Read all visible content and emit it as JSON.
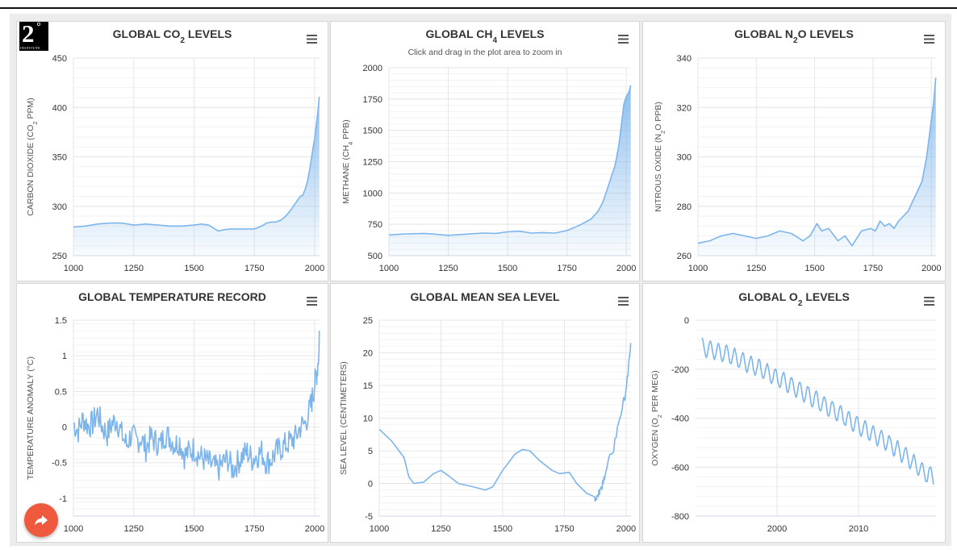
{
  "logo": {
    "number": "2",
    "degree": "°",
    "subtitle": "INSTITUTE"
  },
  "share": {
    "icon": "share-arrow-icon",
    "color": "#ef5a3e"
  },
  "menu_icon": "hamburger-menu-icon",
  "colors": {
    "line": "#7cb5ec",
    "grid": "#e6e6e6",
    "text": "#333333",
    "axis": "#ccd6eb"
  },
  "chart_data": [
    {
      "type": "area",
      "title_parts": [
        {
          "t": "GLOBAL CO"
        },
        {
          "t": "2",
          "sub": true
        },
        {
          "t": " LEVELS"
        }
      ],
      "subtitle": "",
      "ylabel_parts": [
        {
          "t": "CARBON DIOXIDE (CO"
        },
        {
          "t": "2",
          "sub": true
        },
        {
          "t": " PPM)"
        }
      ],
      "xlim": [
        1000,
        2020
      ],
      "ylim": [
        250,
        450
      ],
      "xticks": [
        1000,
        1250,
        1500,
        1750,
        2000
      ],
      "yticks": [
        250,
        300,
        350,
        400,
        450
      ],
      "minor_y": 10,
      "x": [
        1000,
        1050,
        1100,
        1150,
        1200,
        1250,
        1300,
        1350,
        1400,
        1450,
        1500,
        1530,
        1560,
        1600,
        1620,
        1650,
        1700,
        1750,
        1780,
        1800,
        1820,
        1840,
        1860,
        1880,
        1900,
        1920,
        1940,
        1950,
        1960,
        1970,
        1980,
        1990,
        2000,
        2005,
        2010,
        2015,
        2019
      ],
      "y": [
        279,
        280,
        282,
        283,
        283,
        281,
        282,
        281,
        280,
        280,
        281,
        282,
        281,
        275,
        276,
        277,
        277,
        277,
        280,
        283,
        284,
        284,
        286,
        290,
        296,
        303,
        310,
        311,
        317,
        325,
        338,
        354,
        369,
        379,
        389,
        400,
        411
      ]
    },
    {
      "type": "area",
      "title_parts": [
        {
          "t": "GLOBAL CH"
        },
        {
          "t": "4",
          "sub": true
        },
        {
          "t": " LEVELS"
        }
      ],
      "subtitle": "Click and drag in the plot area to zoom in",
      "ylabel_parts": [
        {
          "t": "METHANE (CH"
        },
        {
          "t": "4",
          "sub": true
        },
        {
          "t": " PPB)"
        }
      ],
      "xlim": [
        1000,
        2020
      ],
      "ylim": [
        500,
        2000
      ],
      "xticks": [
        1000,
        1250,
        1500,
        1750,
        2000
      ],
      "yticks": [
        500,
        750,
        1000,
        1250,
        1500,
        1750,
        2000
      ],
      "minor_y": 50,
      "x": [
        1000,
        1050,
        1100,
        1150,
        1200,
        1250,
        1300,
        1350,
        1400,
        1450,
        1500,
        1550,
        1600,
        1650,
        1700,
        1750,
        1800,
        1850,
        1880,
        1900,
        1920,
        1940,
        1950,
        1960,
        1970,
        1980,
        1990,
        2000,
        2010,
        2019
      ],
      "y": [
        665,
        672,
        675,
        678,
        670,
        662,
        668,
        675,
        680,
        678,
        690,
        695,
        680,
        684,
        680,
        700,
        740,
        790,
        850,
        920,
        1030,
        1150,
        1200,
        1290,
        1400,
        1550,
        1710,
        1770,
        1800,
        1860
      ]
    },
    {
      "type": "area",
      "title_parts": [
        {
          "t": "GLOBAL N"
        },
        {
          "t": "2",
          "sub": true
        },
        {
          "t": "O LEVELS"
        }
      ],
      "subtitle": "",
      "ylabel_parts": [
        {
          "t": "NITROUS OXIDE (N"
        },
        {
          "t": "2",
          "sub": true
        },
        {
          "t": "O PPB)"
        }
      ],
      "xlim": [
        1000,
        2020
      ],
      "ylim": [
        260,
        340
      ],
      "xticks": [
        1000,
        1250,
        1500,
        1750,
        2000
      ],
      "yticks": [
        260,
        280,
        300,
        320,
        340
      ],
      "minor_y": 4,
      "x": [
        1000,
        1050,
        1100,
        1150,
        1200,
        1250,
        1300,
        1350,
        1400,
        1450,
        1480,
        1510,
        1530,
        1560,
        1600,
        1630,
        1660,
        1700,
        1740,
        1760,
        1780,
        1800,
        1820,
        1840,
        1860,
        1880,
        1900,
        1920,
        1940,
        1960,
        1980,
        2000,
        2010,
        2019
      ],
      "y": [
        265,
        266,
        268,
        269,
        268,
        267,
        268,
        270,
        269,
        266,
        268,
        273,
        270,
        271,
        266,
        268,
        264,
        270,
        271,
        270,
        274,
        272,
        273,
        271,
        274,
        276,
        278,
        282,
        286,
        290,
        300,
        315,
        322,
        332
      ]
    },
    {
      "type": "line",
      "title_parts": [
        {
          "t": "GLOBAL TEMPERATURE RECORD"
        }
      ],
      "subtitle": "",
      "ylabel_parts": [
        {
          "t": "TEMPERATURE ANOMALY (°C)"
        }
      ],
      "xlim": [
        1000,
        2020
      ],
      "ylim": [
        -1.25,
        1.5
      ],
      "xticks": [
        1000,
        1250,
        1500,
        1750,
        2000
      ],
      "yticks": [
        -1,
        -0.5,
        0,
        0.5,
        1,
        1.5
      ],
      "ytick_labels": [
        "-1",
        "-0.5",
        "0",
        "0.5",
        "1",
        "1.5"
      ],
      "minor_y": 0.1,
      "x": [
        1000,
        1020,
        1040,
        1060,
        1080,
        1100,
        1120,
        1140,
        1160,
        1180,
        1200,
        1220,
        1240,
        1260,
        1280,
        1300,
        1320,
        1340,
        1360,
        1380,
        1400,
        1420,
        1440,
        1460,
        1480,
        1500,
        1520,
        1540,
        1560,
        1580,
        1600,
        1620,
        1640,
        1660,
        1680,
        1700,
        1720,
        1740,
        1760,
        1780,
        1800,
        1820,
        1840,
        1860,
        1880,
        1900,
        1920,
        1940,
        1960,
        1980,
        1990,
        2000,
        2010,
        2019
      ],
      "y": [
        0.05,
        -0.05,
        0.12,
        0.02,
        0.05,
        0.2,
        0.0,
        -0.1,
        0.05,
        0.1,
        -0.1,
        -0.25,
        -0.1,
        -0.2,
        -0.15,
        -0.3,
        -0.15,
        -0.2,
        -0.25,
        -0.1,
        -0.15,
        -0.25,
        -0.2,
        -0.4,
        -0.35,
        -0.3,
        -0.4,
        -0.45,
        -0.5,
        -0.55,
        -0.6,
        -0.5,
        -0.45,
        -0.6,
        -0.5,
        -0.4,
        -0.35,
        -0.45,
        -0.4,
        -0.35,
        -0.5,
        -0.45,
        -0.35,
        -0.3,
        -0.25,
        -0.2,
        -0.15,
        0.0,
        0.05,
        0.25,
        0.4,
        0.6,
        0.8,
        1.1
      ]
    },
    {
      "type": "line",
      "title_parts": [
        {
          "t": "GLOBAL MEAN SEA LEVEL"
        }
      ],
      "subtitle": "",
      "ylabel_parts": [
        {
          "t": "SEA LEVEL (CENTIMETERS)"
        }
      ],
      "xlim": [
        1000,
        2020
      ],
      "ylim": [
        -5,
        25
      ],
      "xticks": [
        1000,
        1250,
        1500,
        1750,
        2000
      ],
      "yticks": [
        -5,
        0,
        5,
        10,
        15,
        20,
        25
      ],
      "minor_y": 1,
      "x": [
        1000,
        1050,
        1100,
        1120,
        1140,
        1180,
        1220,
        1250,
        1280,
        1320,
        1380,
        1430,
        1460,
        1500,
        1550,
        1580,
        1610,
        1650,
        1700,
        1730,
        1770,
        1800,
        1840,
        1870,
        1880,
        1890,
        1900,
        1910,
        1920,
        1940,
        1960,
        1980,
        2000,
        2010,
        2019
      ],
      "y": [
        8.3,
        6.5,
        4.0,
        1.0,
        0.0,
        0.2,
        1.5,
        2.0,
        1.2,
        0.0,
        -0.5,
        -1.0,
        -0.5,
        2.0,
        4.5,
        5.2,
        5.0,
        3.5,
        2.0,
        1.5,
        1.7,
        0.0,
        -1.5,
        -2.0,
        -2.5,
        -1.0,
        -0.5,
        1.0,
        2.0,
        4.5,
        7.0,
        10.5,
        14.5,
        18.0,
        21.5
      ]
    },
    {
      "type": "line",
      "title_parts": [
        {
          "t": "GLOBAL O"
        },
        {
          "t": "2",
          "sub": true
        },
        {
          "t": " LEVELS"
        }
      ],
      "subtitle": "",
      "ylabel_parts": [
        {
          "t": "OXYGEN (O"
        },
        {
          "t": "2",
          "sub": true
        },
        {
          "t": " PER MEG)"
        }
      ],
      "xlim": [
        1990,
        2019.5
      ],
      "ylim": [
        -800,
        0
      ],
      "xticks": [
        2000,
        2010
      ],
      "yticks": [
        -800,
        -600,
        -400,
        -200,
        0
      ],
      "minor_y": 40,
      "seasonal_amplitude_per_meg": 35,
      "x": [
        1990.8,
        1992,
        1994,
        1996,
        1998,
        2000,
        2002,
        2004,
        2006,
        2008,
        2010,
        2012,
        2014,
        2016,
        2018,
        2019.2
      ],
      "y": [
        -110,
        -120,
        -140,
        -170,
        -200,
        -235,
        -270,
        -310,
        -350,
        -390,
        -430,
        -470,
        -510,
        -560,
        -620,
        -640
      ]
    }
  ]
}
